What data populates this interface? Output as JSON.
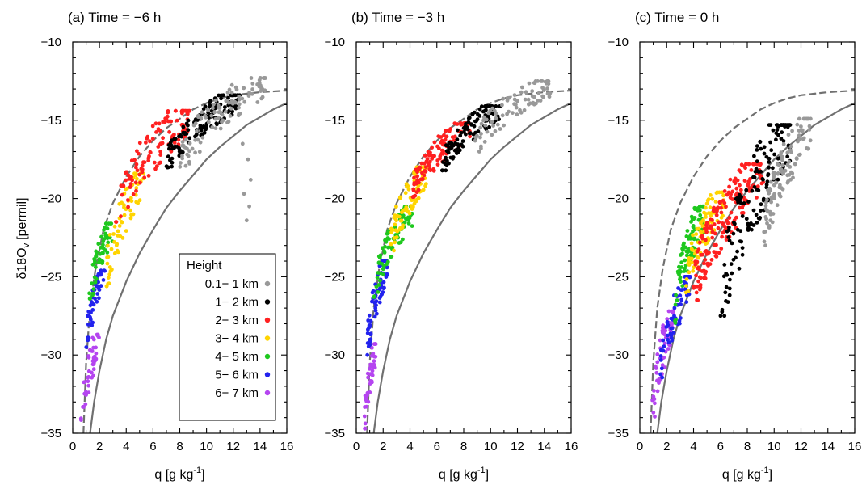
{
  "figure": {
    "ylabel_main": "δ18O",
    "ylabel_sub": "v",
    "ylabel_unit": "[permil]"
  },
  "panels": [
    {
      "title": "(a) Time = −6 h",
      "xlabel_main": "q [g kg",
      "xlabel_sup": "-1",
      "xlabel_end": "]"
    },
    {
      "title": "(b) Time = −3 h",
      "xlabel_main": "q [g kg",
      "xlabel_sup": "-1",
      "xlabel_end": "]"
    },
    {
      "title": "(c) Time = 0 h",
      "xlabel_main": "q [g kg",
      "xlabel_sup": "-1",
      "xlabel_end": "]"
    }
  ],
  "legend": {
    "title": "Height",
    "entries": [
      {
        "label": "0.1− 1 km",
        "color": "#999999"
      },
      {
        "label": "1− 2 km",
        "color": "#000000"
      },
      {
        "label": "2− 3 km",
        "color": "#ff2020"
      },
      {
        "label": "3− 4 km",
        "color": "#ffd400"
      },
      {
        "label": "4− 5 km",
        "color": "#1ec81e"
      },
      {
        "label": "5− 6 km",
        "color": "#2222ee"
      },
      {
        "label": "6− 7 km",
        "color": "#b545f0"
      }
    ]
  },
  "chart_data": [
    {
      "type": "scatter",
      "title": "(a) Time = −6 h",
      "xlabel": "q [g kg-1]",
      "ylabel": "δ18Ov [permil]",
      "xlim": [
        0,
        16
      ],
      "ylim": [
        -35,
        -10
      ],
      "xticks": [
        0,
        2,
        4,
        6,
        8,
        10,
        12,
        14,
        16
      ],
      "yticks": [
        -10,
        -15,
        -20,
        -25,
        -30,
        -35
      ],
      "legend_position": "bottom-right",
      "reference_curves": [
        {
          "style": "dashed",
          "color": "#707070",
          "points": [
            [
              0.8,
              -35
            ],
            [
              1.0,
              -30.5
            ],
            [
              1.3,
              -27
            ],
            [
              1.7,
              -24.5
            ],
            [
              2.3,
              -22
            ],
            [
              3.0,
              -20.3
            ],
            [
              4.0,
              -18.6
            ],
            [
              5.0,
              -17.3
            ],
            [
              6.0,
              -16.3
            ],
            [
              7.0,
              -15.5
            ],
            [
              8.0,
              -14.9
            ],
            [
              9.0,
              -14.3
            ],
            [
              10.0,
              -13.9
            ],
            [
              11.0,
              -13.6
            ],
            [
              12.0,
              -13.4
            ],
            [
              13.0,
              -13.3
            ],
            [
              14.0,
              -13.2
            ],
            [
              16.0,
              -13.1
            ]
          ]
        },
        {
          "style": "solid",
          "color": "#707070",
          "points": [
            [
              1.3,
              -35
            ],
            [
              1.6,
              -33
            ],
            [
              2.0,
              -31
            ],
            [
              2.5,
              -29
            ],
            [
              3.0,
              -27.5
            ],
            [
              4.0,
              -25.3
            ],
            [
              5.0,
              -23.5
            ],
            [
              6.0,
              -22.0
            ],
            [
              7.0,
              -20.6
            ],
            [
              8.0,
              -19.5
            ],
            [
              9.0,
              -18.5
            ],
            [
              10.0,
              -17.5
            ],
            [
              11.0,
              -16.7
            ],
            [
              12.0,
              -16.0
            ],
            [
              13.0,
              -15.3
            ],
            [
              14.0,
              -14.8
            ],
            [
              15.0,
              -14.3
            ],
            [
              16.0,
              -13.9
            ]
          ]
        }
      ],
      "series": [
        {
          "name": "0.1− 1 km",
          "clusters": [
            {
              "x": [
                8.0,
                14.6
              ],
              "y": [
                -18.2,
                -12.3
              ],
              "n": 110
            }
          ],
          "points": [
            [
              12.7,
              -16.5
            ],
            [
              13.1,
              -17.5
            ],
            [
              13.3,
              -18.8
            ],
            [
              12.8,
              -19.7
            ],
            [
              13.2,
              -20.5
            ],
            [
              13.0,
              -21.4
            ]
          ]
        },
        {
          "name": "1− 2 km",
          "clusters": [
            {
              "x": [
                7.0,
                12.5
              ],
              "y": [
                -18.0,
                -13.4
              ],
              "n": 130
            }
          ]
        },
        {
          "name": "2− 3 km",
          "clusters": [
            {
              "x": [
                3.2,
                8.8
              ],
              "y": [
                -21.5,
                -14.4
              ],
              "n": 120
            }
          ]
        },
        {
          "name": "3− 4 km",
          "clusters": [
            {
              "x": [
                2.5,
                5.3
              ],
              "y": [
                -25.6,
                -18.4
              ],
              "n": 70
            }
          ]
        },
        {
          "name": "4− 5 km",
          "clusters": [
            {
              "x": [
                1.2,
                3.0
              ],
              "y": [
                -27.0,
                -21.6
              ],
              "n": 55
            }
          ]
        },
        {
          "name": "5− 6 km",
          "clusters": [
            {
              "x": [
                1.0,
                2.4
              ],
              "y": [
                -29.5,
                -24.6
              ],
              "n": 45
            }
          ]
        },
        {
          "name": "6− 7 km",
          "clusters": [
            {
              "x": [
                0.6,
                2.0
              ],
              "y": [
                -34.9,
                -28.7
              ],
              "n": 45
            }
          ]
        }
      ]
    },
    {
      "type": "scatter",
      "title": "(b) Time = −3 h",
      "xlabel": "q [g kg-1]",
      "ylabel": "δ18Ov [permil]",
      "xlim": [
        0,
        16
      ],
      "ylim": [
        -35,
        -10
      ],
      "xticks": [
        0,
        2,
        4,
        6,
        8,
        10,
        12,
        14,
        16
      ],
      "yticks": [
        -10,
        -15,
        -20,
        -25,
        -30,
        -35
      ],
      "reference_curves": [
        {
          "style": "dashed",
          "color": "#707070",
          "points": [
            [
              0.8,
              -35
            ],
            [
              1.0,
              -30.5
            ],
            [
              1.3,
              -27
            ],
            [
              1.7,
              -24.5
            ],
            [
              2.3,
              -22
            ],
            [
              3.0,
              -20.3
            ],
            [
              4.0,
              -18.6
            ],
            [
              5.0,
              -17.3
            ],
            [
              6.0,
              -16.3
            ],
            [
              7.0,
              -15.5
            ],
            [
              8.0,
              -14.9
            ],
            [
              9.0,
              -14.3
            ],
            [
              10.0,
              -13.9
            ],
            [
              11.0,
              -13.6
            ],
            [
              12.0,
              -13.4
            ],
            [
              13.0,
              -13.3
            ],
            [
              14.0,
              -13.2
            ],
            [
              16.0,
              -13.1
            ]
          ]
        },
        {
          "style": "solid",
          "color": "#707070",
          "points": [
            [
              1.3,
              -35
            ],
            [
              1.6,
              -33
            ],
            [
              2.0,
              -31
            ],
            [
              2.5,
              -29
            ],
            [
              3.0,
              -27.5
            ],
            [
              4.0,
              -25.3
            ],
            [
              5.0,
              -23.5
            ],
            [
              6.0,
              -22.0
            ],
            [
              7.0,
              -20.6
            ],
            [
              8.0,
              -19.5
            ],
            [
              9.0,
              -18.5
            ],
            [
              10.0,
              -17.5
            ],
            [
              11.0,
              -16.7
            ],
            [
              12.0,
              -16.0
            ],
            [
              13.0,
              -15.3
            ],
            [
              14.0,
              -14.8
            ],
            [
              15.0,
              -14.3
            ],
            [
              16.0,
              -13.9
            ]
          ]
        }
      ],
      "series": [
        {
          "name": "0.1− 1 km",
          "clusters": [
            {
              "x": [
                8.8,
                14.5
              ],
              "y": [
                -17.0,
                -12.5
              ],
              "n": 90
            }
          ]
        },
        {
          "name": "1− 2 km",
          "clusters": [
            {
              "x": [
                6.4,
                10.8
              ],
              "y": [
                -18.2,
                -14.1
              ],
              "n": 110
            }
          ]
        },
        {
          "name": "2− 3 km",
          "clusters": [
            {
              "x": [
                4.2,
                8.5
              ],
              "y": [
                -19.9,
                -15.2
              ],
              "n": 120
            }
          ]
        },
        {
          "name": "3− 4 km",
          "clusters": [
            {
              "x": [
                2.5,
                5.3
              ],
              "y": [
                -23.6,
                -18.0
              ],
              "n": 90
            }
          ]
        },
        {
          "name": "4− 5 km",
          "clusters": [
            {
              "x": [
                1.3,
                4.2
              ],
              "y": [
                -26.3,
                -20.5
              ],
              "n": 85
            }
          ]
        },
        {
          "name": "5− 6 km",
          "clusters": [
            {
              "x": [
                0.8,
                2.3
              ],
              "y": [
                -30.0,
                -24.0
              ],
              "n": 70
            }
          ]
        },
        {
          "name": "6− 7 km",
          "clusters": [
            {
              "x": [
                0.6,
                1.5
              ],
              "y": [
                -34.7,
                -29.3
              ],
              "n": 45
            }
          ]
        }
      ]
    },
    {
      "type": "scatter",
      "title": "(c) Time = 0 h",
      "xlabel": "q [g kg-1]",
      "ylabel": "δ18Ov [permil]",
      "xlim": [
        0,
        16
      ],
      "ylim": [
        -35,
        -10
      ],
      "xticks": [
        0,
        2,
        4,
        6,
        8,
        10,
        12,
        14,
        16
      ],
      "yticks": [
        -10,
        -15,
        -20,
        -25,
        -30,
        -35
      ],
      "reference_curves": [
        {
          "style": "dashed",
          "color": "#707070",
          "points": [
            [
              0.8,
              -35
            ],
            [
              1.0,
              -30.5
            ],
            [
              1.3,
              -27
            ],
            [
              1.7,
              -24.5
            ],
            [
              2.3,
              -22
            ],
            [
              3.0,
              -20.3
            ],
            [
              4.0,
              -18.6
            ],
            [
              5.0,
              -17.3
            ],
            [
              6.0,
              -16.3
            ],
            [
              7.0,
              -15.5
            ],
            [
              8.0,
              -14.9
            ],
            [
              9.0,
              -14.3
            ],
            [
              10.0,
              -13.9
            ],
            [
              11.0,
              -13.6
            ],
            [
              12.0,
              -13.4
            ],
            [
              13.0,
              -13.3
            ],
            [
              14.0,
              -13.2
            ],
            [
              16.0,
              -13.1
            ]
          ]
        },
        {
          "style": "solid",
          "color": "#707070",
          "points": [
            [
              1.3,
              -35
            ],
            [
              1.6,
              -33
            ],
            [
              2.0,
              -31
            ],
            [
              2.5,
              -29
            ],
            [
              3.0,
              -27.5
            ],
            [
              4.0,
              -25.3
            ],
            [
              5.0,
              -23.5
            ],
            [
              6.0,
              -22.0
            ],
            [
              7.0,
              -20.6
            ],
            [
              8.0,
              -19.5
            ],
            [
              9.0,
              -18.5
            ],
            [
              10.0,
              -17.5
            ],
            [
              11.0,
              -16.7
            ],
            [
              12.0,
              -16.0
            ],
            [
              13.0,
              -15.3
            ],
            [
              14.0,
              -14.8
            ],
            [
              15.0,
              -14.3
            ],
            [
              16.0,
              -13.9
            ]
          ]
        }
      ],
      "series": [
        {
          "name": "0.1− 1 km",
          "clusters": [
            {
              "x": [
                9.2,
                12.8
              ],
              "y": [
                -23.0,
                -14.9
              ],
              "n": 110
            }
          ]
        },
        {
          "name": "1− 2 km",
          "clusters": [
            {
              "x": [
                6.0,
                11.2
              ],
              "y": [
                -27.5,
                -15.3
              ],
              "n": 150
            }
          ]
        },
        {
          "name": "2− 3 km",
          "clusters": [
            {
              "x": [
                4.0,
                9.2
              ],
              "y": [
                -26.5,
                -17.8
              ],
              "n": 180
            }
          ]
        },
        {
          "name": "3− 4 km",
          "clusters": [
            {
              "x": [
                3.4,
                6.3
              ],
              "y": [
                -26.0,
                -19.6
              ],
              "n": 80
            }
          ]
        },
        {
          "name": "4− 5 km",
          "clusters": [
            {
              "x": [
                2.6,
                4.8
              ],
              "y": [
                -28.0,
                -20.5
              ],
              "n": 90
            }
          ]
        },
        {
          "name": "5− 6 km",
          "clusters": [
            {
              "x": [
                1.5,
                3.8
              ],
              "y": [
                -31.8,
                -25.0
              ],
              "n": 70
            }
          ]
        },
        {
          "name": "6− 7 km",
          "clusters": [
            {
              "x": [
                0.9,
                2.5
              ],
              "y": [
                -34.9,
                -27.2
              ],
              "n": 65
            }
          ]
        }
      ]
    }
  ]
}
